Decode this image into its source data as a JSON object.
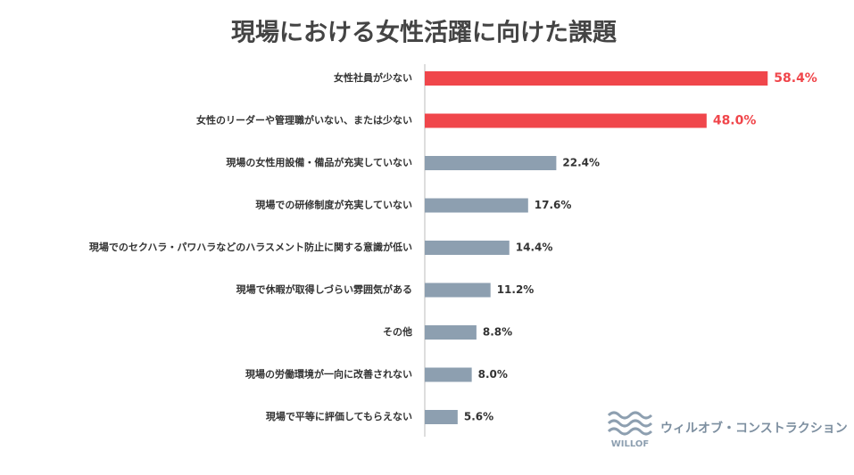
{
  "chart_data": {
    "type": "bar",
    "orientation": "horizontal",
    "title": "現場における女性活躍に向けた課題",
    "categories": [
      "女性社員が少ない",
      "女性のリーダーや管理職がいない、または少ない",
      "現場の女性用設備・備品が充実していない",
      "現場での研修制度が充実していない",
      "現場でのセクハラ・パワハラなどのハラスメント防止に関する意識が低い",
      "現場で休暇が取得しづらい雰囲気がある",
      "その他",
      "現場の労働環境が一向に改善されない",
      "現場で平等に評価してもらえない"
    ],
    "values": [
      58.4,
      48.0,
      22.4,
      17.6,
      14.4,
      11.2,
      8.8,
      8.0,
      5.6
    ],
    "value_labels": [
      "58.4%",
      "48.0%",
      "22.4%",
      "17.6%",
      "14.4%",
      "11.2%",
      "8.8%",
      "8.0%",
      "5.6%"
    ],
    "colors": [
      "#f0464b",
      "#f0464b",
      "#8d9fb0",
      "#8d9fb0",
      "#8d9fb0",
      "#8d9fb0",
      "#8d9fb0",
      "#8d9fb0",
      "#8d9fb0"
    ],
    "value_label_colors": [
      "#f0464b",
      "#f0464b",
      "#333333",
      "#333333",
      "#333333",
      "#333333",
      "#333333",
      "#333333",
      "#333333"
    ]
  },
  "logo": {
    "mark": "WILLOF",
    "name": "ウィルオブ・コンストラクション"
  }
}
